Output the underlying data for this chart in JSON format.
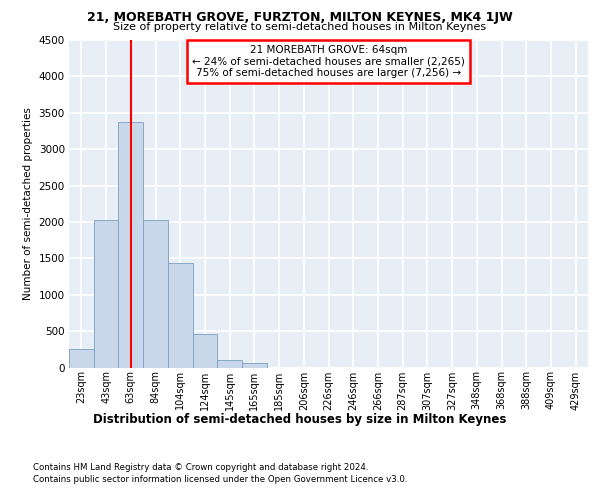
{
  "title": "21, MOREBATH GROVE, FURZTON, MILTON KEYNES, MK4 1JW",
  "subtitle": "Size of property relative to semi-detached houses in Milton Keynes",
  "xlabel": "Distribution of semi-detached houses by size in Milton Keynes",
  "ylabel": "Number of semi-detached properties",
  "categories": [
    "23sqm",
    "43sqm",
    "63sqm",
    "84sqm",
    "104sqm",
    "124sqm",
    "145sqm",
    "165sqm",
    "185sqm",
    "206sqm",
    "226sqm",
    "246sqm",
    "266sqm",
    "287sqm",
    "307sqm",
    "327sqm",
    "348sqm",
    "368sqm",
    "388sqm",
    "409sqm",
    "429sqm"
  ],
  "values": [
    250,
    2020,
    3370,
    2020,
    1440,
    460,
    100,
    60,
    0,
    0,
    0,
    0,
    0,
    0,
    0,
    0,
    0,
    0,
    0,
    0,
    0
  ],
  "bar_color": "#c8d8ea",
  "bar_edge_color": "#7aa0c0",
  "line_color": "red",
  "line_x_index": 2,
  "annotation_title": "21 MOREBATH GROVE: 64sqm",
  "annotation_line1": "← 24% of semi-detached houses are smaller (2,265)",
  "annotation_line2": "75% of semi-detached houses are larger (7,256) →",
  "ylim": [
    0,
    4500
  ],
  "yticks": [
    0,
    500,
    1000,
    1500,
    2000,
    2500,
    3000,
    3500,
    4000,
    4500
  ],
  "footer1": "Contains HM Land Registry data © Crown copyright and database right 2024.",
  "footer2": "Contains public sector information licensed under the Open Government Licence v3.0.",
  "bg_color": "#e8eef5",
  "grid_color": "white"
}
